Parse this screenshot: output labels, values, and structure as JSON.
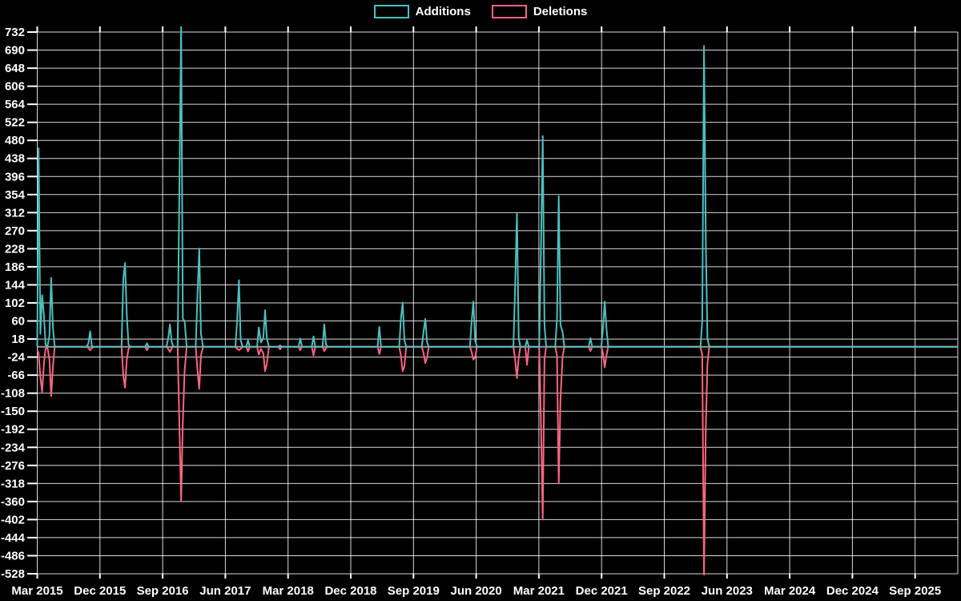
{
  "page": {
    "background": "#000000",
    "grid_color": "#ffffff",
    "zero_line_color": "#9a9a9a",
    "text_color": "#ffffff"
  },
  "chart_data": {
    "type": "line",
    "title": "",
    "x_axis": {
      "tick_labels": [
        "Mar 2015",
        "Dec 2015",
        "Sep 2016",
        "Jun 2017",
        "Mar 2018",
        "Dec 2018",
        "Sep 2019",
        "Jun 2020",
        "Mar 2021",
        "Dec 2021",
        "Sep 2022",
        "Jun 2023",
        "Mar 2024",
        "Dec 2024",
        "Sep 2025"
      ],
      "months_per_tick": 9,
      "start": "Mar 2015"
    },
    "y_axis": {
      "min": -528,
      "max": 732,
      "step": 42,
      "tick_labels": [
        "732",
        "690",
        "648",
        "606",
        "564",
        "522",
        "480",
        "438",
        "396",
        "354",
        "312",
        "270",
        "228",
        "186",
        "144",
        "102",
        "60",
        "18",
        "-24",
        "-66",
        "-108",
        "-150",
        "-192",
        "-234",
        "-276",
        "-318",
        "-360",
        "-402",
        "-444",
        "-486",
        "-528"
      ]
    },
    "grid": {
      "on": true,
      "legend_position": "top"
    },
    "series": [
      {
        "name": "Additions",
        "color": "#4bc0c0"
      },
      {
        "name": "Deletions",
        "color": "#ff6384"
      }
    ],
    "points_unit": "months_since_Mar_2015",
    "points": [
      [
        0.0,
        0,
        -8
      ],
      [
        0.2,
        462,
        -15
      ],
      [
        0.45,
        30,
        -70
      ],
      [
        0.7,
        120,
        -105
      ],
      [
        0.95,
        75,
        -40
      ],
      [
        1.2,
        5,
        -5
      ],
      [
        1.45,
        0,
        0
      ],
      [
        1.75,
        25,
        -30
      ],
      [
        2.0,
        160,
        -115
      ],
      [
        2.25,
        45,
        -45
      ],
      [
        2.5,
        0,
        0
      ],
      [
        7.1,
        0,
        0
      ],
      [
        7.35,
        8,
        -3
      ],
      [
        7.6,
        36,
        -8
      ],
      [
        7.85,
        0,
        -3
      ],
      [
        8.1,
        0,
        0
      ],
      [
        12.1,
        0,
        0
      ],
      [
        12.35,
        155,
        -65
      ],
      [
        12.6,
        195,
        -95
      ],
      [
        12.85,
        75,
        -30
      ],
      [
        13.1,
        5,
        -5
      ],
      [
        13.35,
        0,
        0
      ],
      [
        15.5,
        0,
        0
      ],
      [
        15.75,
        8,
        -8
      ],
      [
        16.0,
        0,
        0
      ],
      [
        18.55,
        0,
        0
      ],
      [
        18.8,
        20,
        -5
      ],
      [
        19.05,
        52,
        -12
      ],
      [
        19.3,
        10,
        -3
      ],
      [
        19.55,
        0,
        0
      ],
      [
        20.15,
        0,
        0
      ],
      [
        20.4,
        368,
        -180
      ],
      [
        20.65,
        744,
        -360
      ],
      [
        20.9,
        65,
        -175
      ],
      [
        21.15,
        60,
        -57
      ],
      [
        21.45,
        0,
        0
      ],
      [
        22.75,
        0,
        0
      ],
      [
        23.0,
        120,
        -55
      ],
      [
        23.25,
        228,
        -98
      ],
      [
        23.5,
        30,
        -20
      ],
      [
        23.8,
        0,
        0
      ],
      [
        28.45,
        0,
        0
      ],
      [
        28.7,
        65,
        -5
      ],
      [
        28.95,
        155,
        -8
      ],
      [
        29.2,
        15,
        -5
      ],
      [
        29.5,
        0,
        0
      ],
      [
        30.0,
        0,
        0
      ],
      [
        30.25,
        15,
        -11
      ],
      [
        30.5,
        0,
        0
      ],
      [
        31.55,
        0,
        0
      ],
      [
        31.8,
        45,
        -18
      ],
      [
        32.1,
        10,
        -5
      ],
      [
        32.45,
        20,
        -15
      ],
      [
        32.7,
        85,
        -57
      ],
      [
        32.95,
        20,
        -40
      ],
      [
        33.25,
        0,
        0
      ],
      [
        34.6,
        0,
        0
      ],
      [
        34.85,
        3,
        -6
      ],
      [
        35.1,
        0,
        0
      ],
      [
        37.5,
        0,
        0
      ],
      [
        37.75,
        19,
        -8
      ],
      [
        38.0,
        0,
        0
      ],
      [
        39.4,
        0,
        0
      ],
      [
        39.65,
        24,
        -20
      ],
      [
        39.9,
        0,
        0
      ],
      [
        40.95,
        0,
        0
      ],
      [
        41.2,
        52,
        -10
      ],
      [
        41.45,
        5,
        -3
      ],
      [
        41.7,
        0,
        0
      ],
      [
        48.85,
        0,
        0
      ],
      [
        49.1,
        46,
        -17
      ],
      [
        49.35,
        0,
        0
      ],
      [
        51.95,
        0,
        0
      ],
      [
        52.2,
        65,
        -20
      ],
      [
        52.45,
        103,
        -57
      ],
      [
        52.7,
        15,
        -45
      ],
      [
        52.95,
        0,
        0
      ],
      [
        55.2,
        0,
        0
      ],
      [
        55.45,
        35,
        -15
      ],
      [
        55.7,
        65,
        -38
      ],
      [
        55.95,
        10,
        -25
      ],
      [
        56.2,
        0,
        0
      ],
      [
        62.1,
        0,
        0
      ],
      [
        62.35,
        58,
        -12
      ],
      [
        62.6,
        105,
        -30
      ],
      [
        62.85,
        15,
        -25
      ],
      [
        63.1,
        0,
        0
      ],
      [
        68.35,
        0,
        0
      ],
      [
        68.6,
        145,
        -30
      ],
      [
        68.85,
        310,
        -73
      ],
      [
        69.1,
        20,
        -25
      ],
      [
        69.35,
        0,
        0
      ],
      [
        70.05,
        0,
        0
      ],
      [
        70.3,
        15,
        -42
      ],
      [
        70.55,
        0,
        0
      ],
      [
        72.05,
        0,
        0
      ],
      [
        72.3,
        225,
        -175
      ],
      [
        72.55,
        490,
        -402
      ],
      [
        72.8,
        50,
        -28
      ],
      [
        73.05,
        0,
        0
      ],
      [
        74.35,
        0,
        0
      ],
      [
        74.6,
        65,
        -20
      ],
      [
        74.85,
        350,
        -318
      ],
      [
        75.1,
        50,
        -120
      ],
      [
        75.4,
        35,
        -23
      ],
      [
        75.65,
        0,
        0
      ],
      [
        79.15,
        0,
        0
      ],
      [
        79.4,
        20,
        -10
      ],
      [
        79.65,
        0,
        0
      ],
      [
        80.95,
        0,
        0
      ],
      [
        81.2,
        40,
        -15
      ],
      [
        81.45,
        105,
        -48
      ],
      [
        81.7,
        42,
        -20
      ],
      [
        81.95,
        0,
        0
      ],
      [
        95.2,
        0,
        0
      ],
      [
        95.45,
        60,
        -20
      ],
      [
        95.7,
        700,
        -530
      ],
      [
        95.95,
        250,
        -190
      ],
      [
        96.2,
        20,
        -40
      ],
      [
        96.45,
        0,
        0
      ],
      [
        132.0,
        0,
        0
      ]
    ]
  }
}
